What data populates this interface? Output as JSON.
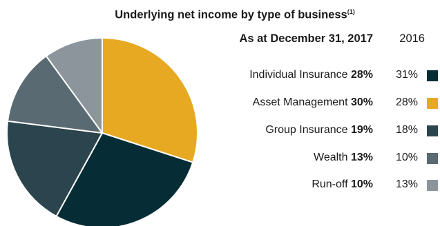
{
  "chart_data": {
    "type": "pie",
    "title": "Underlying net income by type of business",
    "title_footnote": "(1)",
    "current_header": "As at December 31, 2017",
    "previous_header": "2016",
    "slices": [
      {
        "label": "Individual Insurance",
        "value": 28,
        "value_label": "28%",
        "previous": 31,
        "previous_label": "31%",
        "color": "#062d35"
      },
      {
        "label": "Asset Management",
        "value": 30,
        "value_label": "30%",
        "previous": 28,
        "previous_label": "28%",
        "color": "#e8a922"
      },
      {
        "label": "Group Insurance",
        "value": 19,
        "value_label": "19%",
        "previous": 18,
        "previous_label": "18%",
        "color": "#2c444e"
      },
      {
        "label": "Wealth",
        "value": 13,
        "value_label": "13%",
        "previous": 10,
        "previous_label": "10%",
        "color": "#5a6a73"
      },
      {
        "label": "Run-off",
        "value": 10,
        "value_label": "10%",
        "previous": 13,
        "previous_label": "13%",
        "color": "#8c959c"
      }
    ],
    "slice_order_clockwise_from_top": [
      "Asset Management",
      "Individual Insurance",
      "Group Insurance",
      "Wealth",
      "Run-off"
    ]
  }
}
